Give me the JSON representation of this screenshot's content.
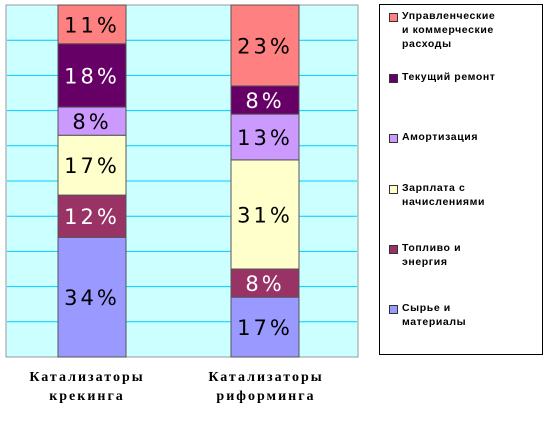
{
  "chart_data": {
    "type": "bar",
    "stacked": true,
    "normalized": true,
    "categories": [
      "Катализаторы крекинга",
      "Катализаторы риформинга"
    ],
    "category_lines": [
      [
        "Катализаторы",
        "крекинга"
      ],
      [
        "Катализаторы",
        "риформинга"
      ]
    ],
    "ylim": [
      0,
      100
    ],
    "grid": true,
    "legend_position": "right",
    "series": [
      {
        "name": "Сырье и материалы",
        "lines": [
          "Сырье и",
          "материалы"
        ],
        "values": [
          34,
          17
        ],
        "labels": [
          "34%",
          "17%"
        ],
        "color": "#9999ff"
      },
      {
        "name": "Топливо и энергия",
        "lines": [
          "Топливо и",
          "энергия"
        ],
        "values": [
          12,
          8
        ],
        "labels": [
          "12%",
          "8%"
        ],
        "color": "#993366"
      },
      {
        "name": "Зарплата с начислениями",
        "lines": [
          "Зарплата с",
          "начислениями"
        ],
        "values": [
          17,
          31
        ],
        "labels": [
          "17%",
          "31%"
        ],
        "color": "#ffffcc"
      },
      {
        "name": "Амортизация",
        "lines": [
          "Амортизация"
        ],
        "values": [
          8,
          13
        ],
        "labels": [
          "8%",
          "13%"
        ],
        "color": "#cc99ff"
      },
      {
        "name": "Текущий ремонт",
        "lines": [
          "Текущий ремонт"
        ],
        "values": [
          18,
          8
        ],
        "labels": [
          "18%",
          "8%"
        ],
        "color": "#660066"
      },
      {
        "name": "Управленческие и коммерческие расходы",
        "lines": [
          "Управленческие",
          "и коммерческие",
          "расходы"
        ],
        "values": [
          11,
          23
        ],
        "labels": [
          "11%",
          "23%"
        ],
        "color": "#ff8080"
      }
    ],
    "colors": {
      "plot_background": "#ccffff",
      "gridline": "#00ccff",
      "bar_border": "#555555"
    }
  }
}
